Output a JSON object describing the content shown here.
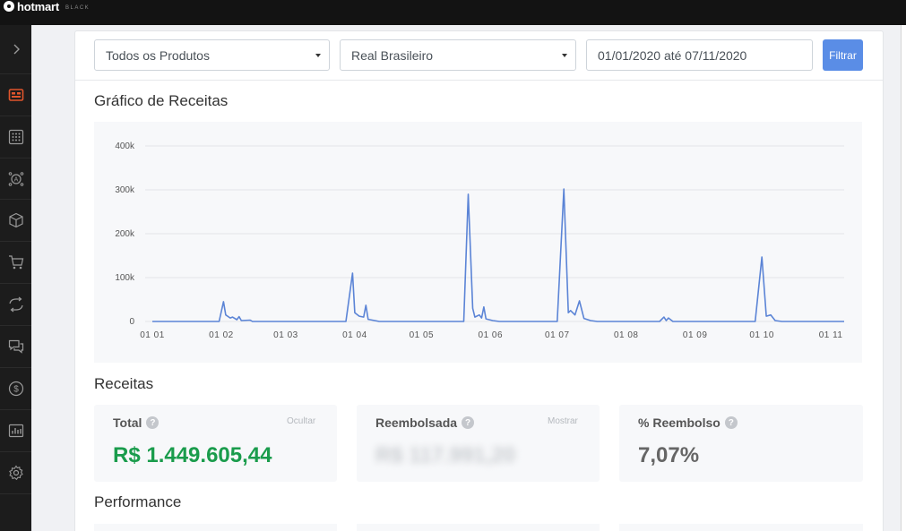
{
  "brand": {
    "name": "hotmart",
    "sub": "BLACK"
  },
  "sidebar": {
    "items": [
      {
        "name": "expand-chevron-icon"
      },
      {
        "name": "dashboard-icon",
        "active": true
      },
      {
        "name": "apps-grid-icon"
      },
      {
        "name": "affiliates-icon"
      },
      {
        "name": "products-box-icon"
      },
      {
        "name": "cart-icon"
      },
      {
        "name": "subscriptions-icon"
      },
      {
        "name": "messages-icon"
      },
      {
        "name": "money-icon"
      },
      {
        "name": "reports-icon"
      },
      {
        "name": "settings-icon"
      }
    ]
  },
  "filters": {
    "product": "Todos os Produtos",
    "currency": "Real Brasileiro",
    "date_range": "01/01/2020 até 07/11/2020",
    "button": "Filtrar"
  },
  "chart_section": {
    "title": "Gráfico de Receitas"
  },
  "chart_data": {
    "type": "line",
    "x_ticks": [
      "01 01",
      "01 02",
      "01 03",
      "01 04",
      "01 05",
      "01 06",
      "01 07",
      "01 08",
      "01 09",
      "01 10",
      "01 11"
    ],
    "y_ticks": [
      "0",
      "100k",
      "200k",
      "300k",
      "400k"
    ],
    "ylim": [
      0,
      400000
    ],
    "xlim": [
      "2020-01-01",
      "2020-11-07"
    ],
    "grid": true,
    "color": "#5b84d6",
    "points": [
      [
        "2020-01-01",
        0
      ],
      [
        "2020-01-31",
        0
      ],
      [
        "2020-02-02",
        45000
      ],
      [
        "2020-02-03",
        15000
      ],
      [
        "2020-02-05",
        8000
      ],
      [
        "2020-02-06",
        10000
      ],
      [
        "2020-02-08",
        4000
      ],
      [
        "2020-02-09",
        11000
      ],
      [
        "2020-02-10",
        2000
      ],
      [
        "2020-02-14",
        3000
      ],
      [
        "2020-02-15",
        0
      ],
      [
        "2020-03-28",
        0
      ],
      [
        "2020-03-31",
        110000
      ],
      [
        "2020-04-01",
        20000
      ],
      [
        "2020-04-03",
        12000
      ],
      [
        "2020-04-05",
        10000
      ],
      [
        "2020-04-06",
        37000
      ],
      [
        "2020-04-07",
        5000
      ],
      [
        "2020-04-10",
        2000
      ],
      [
        "2020-04-12",
        0
      ],
      [
        "2020-05-20",
        0
      ],
      [
        "2020-05-22",
        290000
      ],
      [
        "2020-05-24",
        30000
      ],
      [
        "2020-05-25",
        10000
      ],
      [
        "2020-05-27",
        15000
      ],
      [
        "2020-05-28",
        8000
      ],
      [
        "2020-05-29",
        33000
      ],
      [
        "2020-05-30",
        6000
      ],
      [
        "2020-06-02",
        2000
      ],
      [
        "2020-06-05",
        0
      ],
      [
        "2020-07-01",
        0
      ],
      [
        "2020-07-04",
        302000
      ],
      [
        "2020-07-06",
        20000
      ],
      [
        "2020-07-07",
        25000
      ],
      [
        "2020-07-09",
        15000
      ],
      [
        "2020-07-11",
        47000
      ],
      [
        "2020-07-13",
        7000
      ],
      [
        "2020-07-16",
        2000
      ],
      [
        "2020-07-19",
        0
      ],
      [
        "2020-08-16",
        0
      ],
      [
        "2020-08-18",
        10000
      ],
      [
        "2020-08-19",
        2000
      ],
      [
        "2020-08-20",
        8000
      ],
      [
        "2020-08-22",
        0
      ],
      [
        "2020-09-28",
        0
      ],
      [
        "2020-10-01",
        147000
      ],
      [
        "2020-10-03",
        12000
      ],
      [
        "2020-10-05",
        15000
      ],
      [
        "2020-10-07",
        2000
      ],
      [
        "2020-10-10",
        0
      ],
      [
        "2020-11-07",
        0
      ]
    ]
  },
  "receitas": {
    "title": "Receitas",
    "total": {
      "label": "Total",
      "link": "Ocultar",
      "value": "R$ 1.449.605,44",
      "color": "#1a9c4c"
    },
    "reembolsada": {
      "label": "Reembolsada",
      "link": "Mostrar",
      "value": "R$ 117.991,20"
    },
    "percent": {
      "label": "% Reembolso",
      "value": "7,07%"
    }
  },
  "performance": {
    "title": "Performance"
  }
}
